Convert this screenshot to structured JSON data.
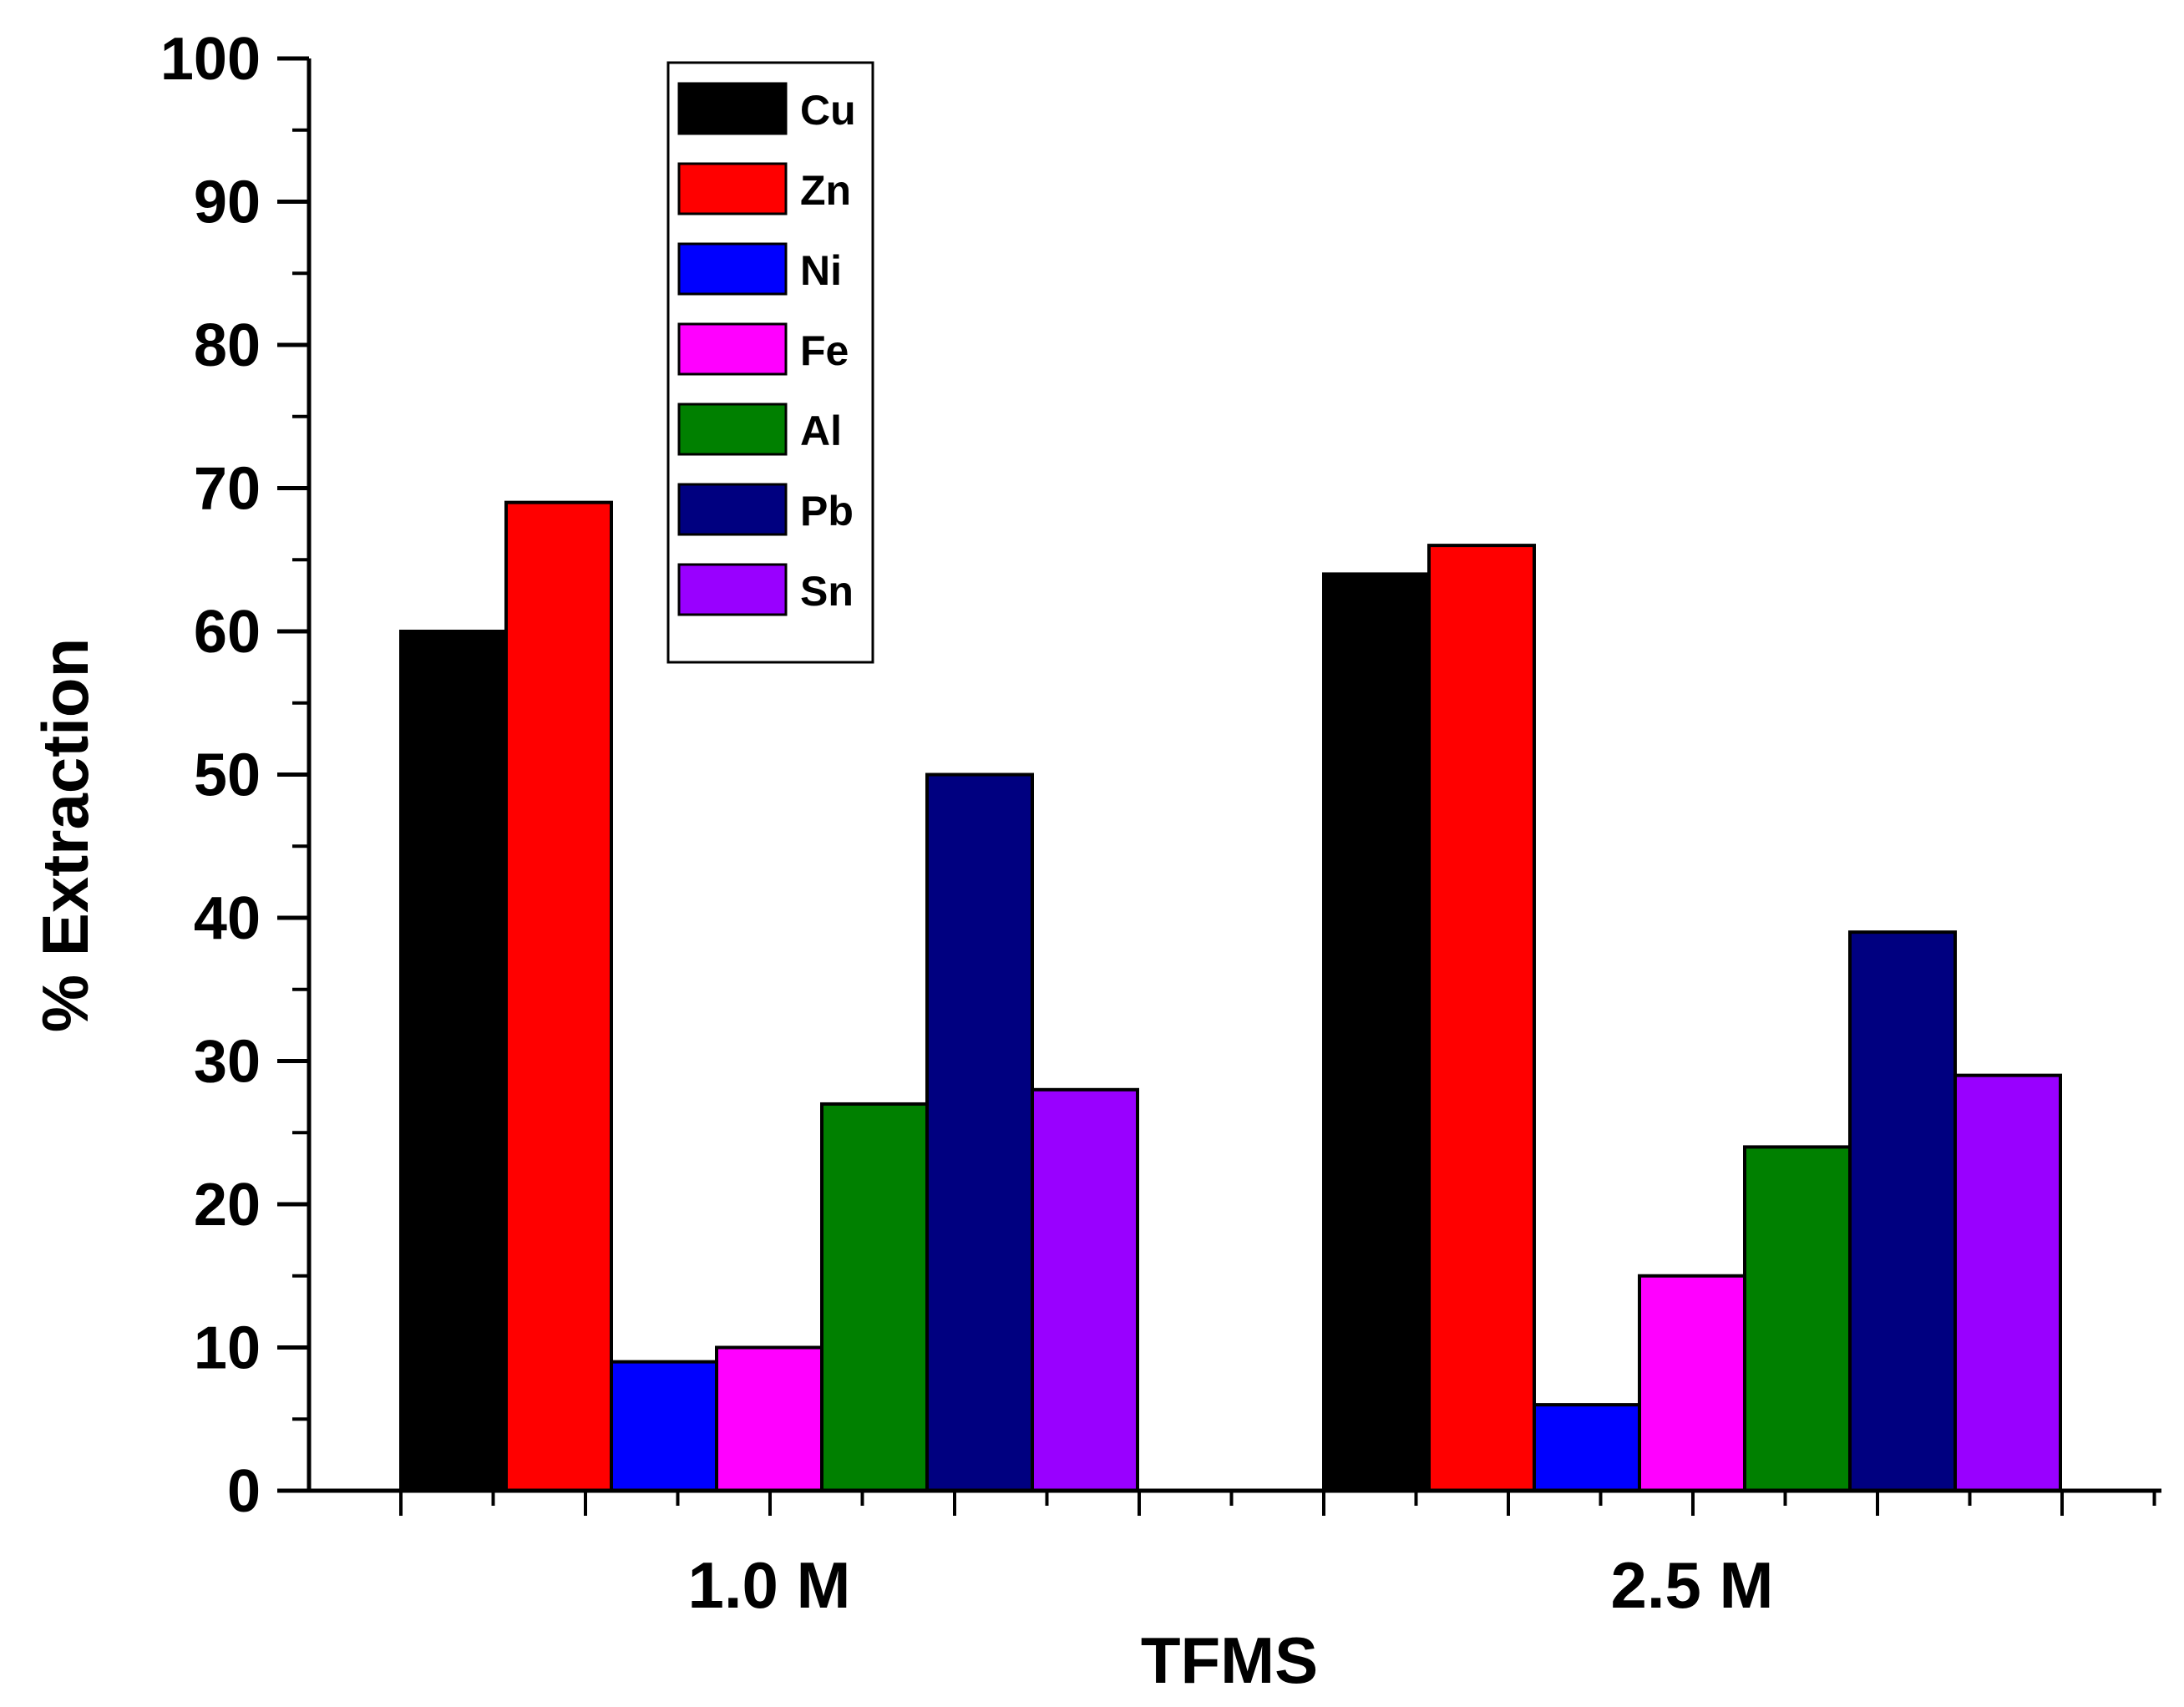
{
  "chart_data": {
    "type": "bar",
    "title": "",
    "xlabel": "TFMS",
    "ylabel": "% Extraction",
    "categories": [
      "1.0 M",
      "2.5 M"
    ],
    "ylim": [
      0,
      100
    ],
    "yticks": [
      0,
      10,
      20,
      30,
      40,
      50,
      60,
      70,
      80,
      90,
      100
    ],
    "grid": false,
    "legend_position": "top-left",
    "series": [
      {
        "name": "Cu",
        "color": "#000000",
        "values": [
          60,
          64
        ]
      },
      {
        "name": "Zn",
        "color": "#ff0000",
        "values": [
          69,
          66
        ]
      },
      {
        "name": "Ni",
        "color": "#0000ff",
        "values": [
          9,
          6
        ]
      },
      {
        "name": "Fe",
        "color": "#ff00ff",
        "values": [
          10,
          15
        ]
      },
      {
        "name": "Al",
        "color": "#008000",
        "values": [
          27,
          24
        ]
      },
      {
        "name": "Pb",
        "color": "#000080",
        "values": [
          50,
          39
        ]
      },
      {
        "name": "Sn",
        "color": "#9900ff",
        "values": [
          28,
          29
        ]
      }
    ]
  }
}
